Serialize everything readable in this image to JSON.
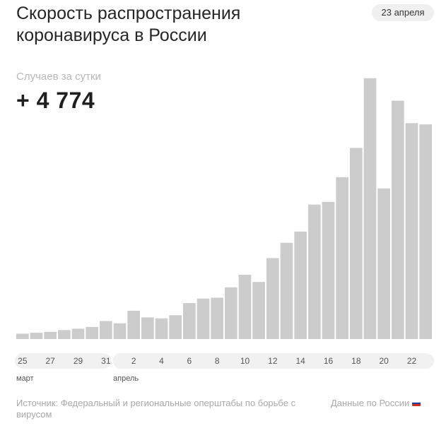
{
  "header": {
    "title": "Скорость распространения коронавируса в России",
    "date_badge": "23 апреля"
  },
  "metric": {
    "label": "Случаев за сутки",
    "value": "+ 4 774"
  },
  "chart_data": {
    "type": "bar",
    "categories": [
      "25",
      "26",
      "27",
      "28",
      "29",
      "30",
      "31",
      "1",
      "2",
      "3",
      "4",
      "5",
      "6",
      "7",
      "8",
      "9",
      "10",
      "11",
      "12",
      "13",
      "14",
      "15",
      "16",
      "17",
      "18",
      "19",
      "20",
      "21",
      "22",
      "23"
    ],
    "tick_labels": [
      "25",
      "27",
      "29",
      "31",
      "2",
      "4",
      "6",
      "8",
      "10",
      "12",
      "14",
      "16",
      "18",
      "20",
      "22"
    ],
    "month_labels": {
      "march": "март",
      "april": "апрель"
    },
    "values": [
      120,
      140,
      160,
      200,
      230,
      270,
      400,
      350,
      630,
      480,
      460,
      530,
      800,
      900,
      920,
      1150,
      1430,
      1270,
      1800,
      2140,
      2390,
      2990,
      3050,
      3600,
      4250,
      5800,
      3350,
      5300,
      4800,
      4774
    ],
    "ylim": [
      0,
      6000
    ],
    "color": "#cccccc",
    "grid": false
  },
  "footer": {
    "source": "Источник: Федеральный и региональные оперштабы по борьбе с вирусом",
    "country": "Данные по России",
    "flag_colors": [
      "#ffffff",
      "#1c3fa8",
      "#d52b1e"
    ]
  }
}
